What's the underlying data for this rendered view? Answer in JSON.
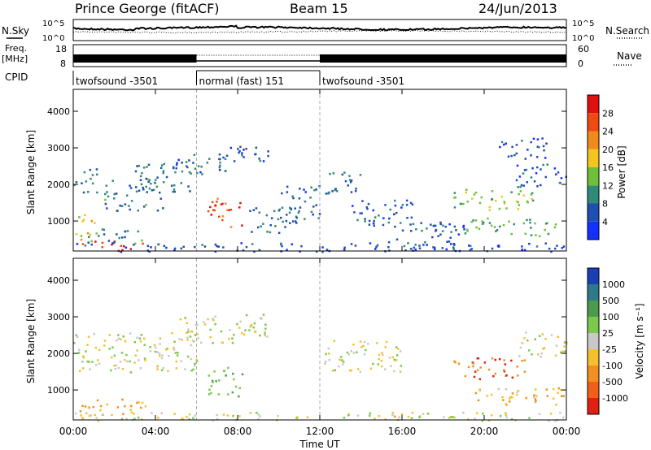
{
  "header": {
    "station": "Prince George (fitACF)",
    "beam": "Beam 15",
    "date": "24/Jun/2013"
  },
  "panels": {
    "nsky": {
      "left_label": "N.Sky",
      "right_label": "N.Search",
      "tick_top": "10^5",
      "tick_bottom": "10^0"
    },
    "freq": {
      "left_label_1": "Freq.",
      "left_label_2": "[MHz]",
      "tick_top": "18",
      "tick_bottom": "8",
      "right_label": "Nave",
      "right_tick_top": "60",
      "right_tick_bottom": "0"
    },
    "cpid": {
      "label": "CPID",
      "segments": [
        {
          "name": "twofsound -3501",
          "start_h": 0,
          "end_h": 6
        },
        {
          "name": "normal (fast) 151",
          "start_h": 6,
          "end_h": 12
        },
        {
          "name": "twofsound -3501",
          "start_h": 12,
          "end_h": 24
        }
      ]
    }
  },
  "axes": {
    "ylabel": "Slant Range [km]",
    "xlabel": "Time UT",
    "yticks": [
      "1000",
      "2000",
      "3000",
      "4000"
    ],
    "xticks": [
      "00:00",
      "04:00",
      "08:00",
      "12:00",
      "16:00",
      "20:00",
      "00:00"
    ]
  },
  "colorbars": {
    "power": {
      "label": "Power [dB]",
      "ticks": [
        "4",
        "8",
        "12",
        "16",
        "20",
        "24",
        "28"
      ],
      "colors": [
        "#1430ff",
        "#1f4fb0",
        "#2f8a78",
        "#6fbf3a",
        "#f2c61f",
        "#f08a1a",
        "#f04a12",
        "#e01010"
      ]
    },
    "velocity": {
      "label": "Velocity [m s⁻¹]",
      "ticks": [
        "1000",
        "500",
        "100",
        "25",
        "-25",
        "-100",
        "-500",
        "-1000"
      ],
      "colors": [
        "#1a3fb5",
        "#2d7a8a",
        "#4c9a4c",
        "#7cc84a",
        "#c8c8c8",
        "#f5c030",
        "#f09020",
        "#f06018",
        "#e02010"
      ]
    }
  },
  "chart_data": {
    "type": "heatmap",
    "title": "Prince George (fitACF) Beam 15 24/Jun/2013",
    "xlabel": "Time UT",
    "ylabel": "Slant Range [km]",
    "x_unit": "hours UT",
    "xlim": [
      0,
      24
    ],
    "ylim": [
      180,
      4600
    ],
    "xticks": [
      "00:00",
      "04:00",
      "08:00",
      "12:00",
      "16:00",
      "20:00",
      "00:00"
    ],
    "yticks": [
      1000,
      2000,
      3000,
      4000
    ],
    "mode_changes_h": [
      6,
      12
    ],
    "power_regions": [
      {
        "t0": 0.3,
        "t1": 2.0,
        "r0": 300,
        "r1": 560,
        "db": 26
      },
      {
        "t0": 1.8,
        "t1": 3.8,
        "r0": 200,
        "r1": 420,
        "db": 28
      },
      {
        "t0": 0.1,
        "t1": 1.0,
        "r0": 600,
        "r1": 1200,
        "db": 18
      },
      {
        "t0": 0.3,
        "t1": 3.5,
        "r0": 400,
        "r1": 800,
        "db": 10
      },
      {
        "t0": 0.0,
        "t1": 1.2,
        "r0": 1800,
        "r1": 2500,
        "db": 8
      },
      {
        "t0": 1.5,
        "t1": 4.5,
        "r0": 1300,
        "r1": 2200,
        "db": 9
      },
      {
        "t0": 3.0,
        "t1": 6.0,
        "r0": 1800,
        "r1": 2600,
        "db": 8
      },
      {
        "t0": 5.0,
        "t1": 7.5,
        "r0": 2300,
        "r1": 2900,
        "db": 7
      },
      {
        "t0": 7.0,
        "t1": 9.5,
        "r0": 2600,
        "r1": 3100,
        "db": 6
      },
      {
        "t0": 6.5,
        "t1": 8.2,
        "r0": 850,
        "r1": 1650,
        "db": 26
      },
      {
        "t0": 8.5,
        "t1": 11.0,
        "r0": 700,
        "r1": 1400,
        "db": 8
      },
      {
        "t0": 10.0,
        "t1": 12.0,
        "r0": 1000,
        "r1": 2000,
        "db": 7
      },
      {
        "t0": 12.2,
        "t1": 14.0,
        "r0": 1700,
        "r1": 2400,
        "db": 8
      },
      {
        "t0": 13.5,
        "t1": 16.5,
        "r0": 900,
        "r1": 1600,
        "db": 6
      },
      {
        "t0": 15.0,
        "t1": 19.0,
        "r0": 300,
        "r1": 1000,
        "db": 7
      },
      {
        "t0": 18.5,
        "t1": 22.5,
        "r0": 1300,
        "r1": 1900,
        "db": 14
      },
      {
        "t0": 19.0,
        "t1": 23.5,
        "r0": 600,
        "r1": 1100,
        "db": 12
      },
      {
        "t0": 21.5,
        "t1": 24.0,
        "r0": 1900,
        "r1": 2600,
        "db": 7
      },
      {
        "t0": 20.5,
        "t1": 23.0,
        "r0": 2700,
        "r1": 3300,
        "db": 5
      },
      {
        "t0": 0.0,
        "t1": 24.0,
        "r0": 180,
        "r1": 420,
        "db": 5
      }
    ],
    "velocity_regions": [
      {
        "t0": 0.3,
        "t1": 3.5,
        "r0": 300,
        "r1": 800,
        "v": -100
      },
      {
        "t0": 0.0,
        "t1": 6.0,
        "r0": 1500,
        "r1": 2600,
        "v": 0
      },
      {
        "t0": 5.0,
        "t1": 9.5,
        "r0": 2300,
        "r1": 3100,
        "v": 0
      },
      {
        "t0": 6.5,
        "t1": 8.2,
        "r0": 850,
        "r1": 1650,
        "v": 100
      },
      {
        "t0": 12.2,
        "t1": 16.0,
        "r0": 1500,
        "r1": 2400,
        "v": 0
      },
      {
        "t0": 18.5,
        "t1": 22.0,
        "r0": 1300,
        "r1": 1900,
        "v": -500
      },
      {
        "t0": 19.5,
        "t1": 24.0,
        "r0": 600,
        "r1": 1100,
        "v": -100
      },
      {
        "t0": 21.5,
        "t1": 24.0,
        "r0": 1900,
        "r1": 2600,
        "v": 0
      },
      {
        "t0": 0.0,
        "t1": 24.0,
        "r0": 180,
        "r1": 420,
        "v": -25
      }
    ]
  }
}
